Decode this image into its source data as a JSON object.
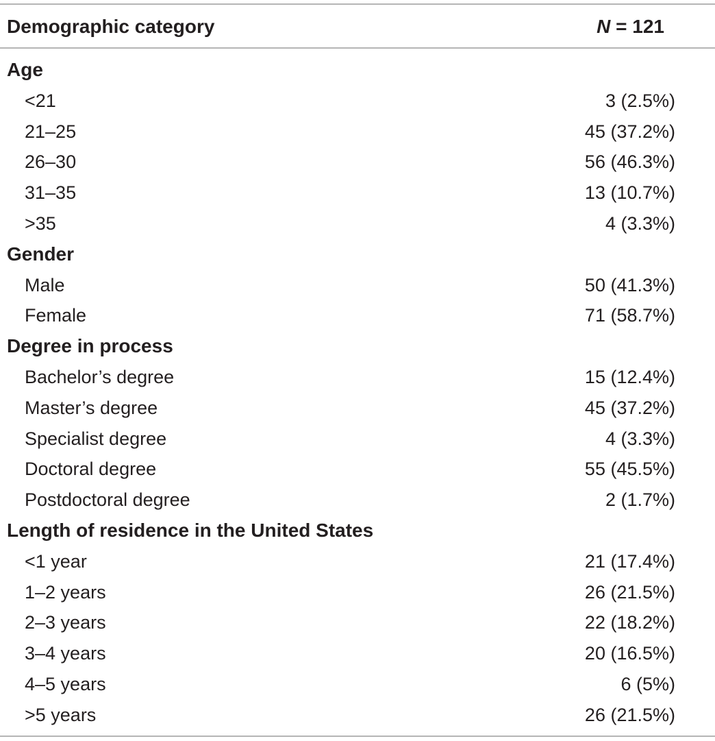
{
  "header": {
    "category_label": "Demographic category",
    "n_var": "N",
    "n_rest": " = 121"
  },
  "sections": [
    {
      "title": "Age",
      "rows": [
        {
          "label": "<21",
          "value": "3 (2.5%)"
        },
        {
          "label": "21–25",
          "value": "45 (37.2%)"
        },
        {
          "label": "26–30",
          "value": "56 (46.3%)"
        },
        {
          "label": "31–35",
          "value": "13 (10.7%)"
        },
        {
          "label": ">35",
          "value": "4 (3.3%)"
        }
      ]
    },
    {
      "title": "Gender",
      "rows": [
        {
          "label": "Male",
          "value": "50 (41.3%)"
        },
        {
          "label": "Female",
          "value": "71 (58.7%)"
        }
      ]
    },
    {
      "title": "Degree in process",
      "rows": [
        {
          "label": "Bachelor’s degree",
          "value": "15 (12.4%)"
        },
        {
          "label": "Master’s degree",
          "value": "45 (37.2%)"
        },
        {
          "label": "Specialist degree",
          "value": "4 (3.3%)"
        },
        {
          "label": "Doctoral degree",
          "value": "55 (45.5%)"
        },
        {
          "label": "Postdoctoral degree",
          "value": "2 (1.7%)"
        }
      ]
    },
    {
      "title": "Length of residence in the United States",
      "rows": [
        {
          "label": "<1 year",
          "value": "21 (17.4%)"
        },
        {
          "label": "1–2 years",
          "value": "26 (21.5%)"
        },
        {
          "label": "2–3 years",
          "value": "22 (18.2%)"
        },
        {
          "label": "3–4 years",
          "value": "20 (16.5%)"
        },
        {
          "label": "4–5 years",
          "value": "6 (5%)"
        },
        {
          "label": ">5 years",
          "value": "26 (21.5%)"
        }
      ]
    }
  ]
}
